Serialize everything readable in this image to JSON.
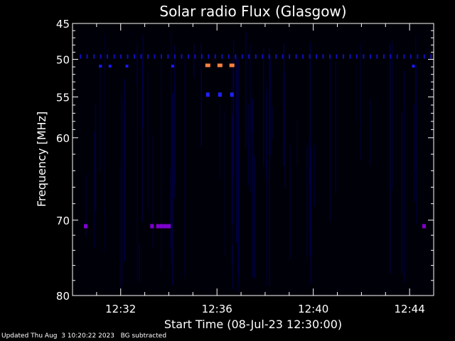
{
  "chart_data": {
    "type": "heatmap",
    "title": "Solar radio Flux (Glasgow)",
    "xlabel": "Start Time (08-Jul-23 12:30:00)",
    "ylabel": "Frequency [MHz]",
    "x_ticks": [
      "12:32",
      "12:36",
      "12:40",
      "12:44"
    ],
    "x_tick_minutes": [
      2,
      6,
      10,
      14
    ],
    "xlim_minutes": [
      0,
      15
    ],
    "y_ticks": [
      45,
      50,
      55,
      60,
      70,
      80
    ],
    "y_tick_positions": [
      0,
      0.132,
      0.27,
      0.42,
      0.723,
      1.0
    ],
    "ylim": [
      45,
      80
    ],
    "background_color": "#000000",
    "colormap": [
      "#000010",
      "#0000ff",
      "#8000c0",
      "#ff00ff",
      "#ff8040"
    ],
    "bright_spots": [
      {
        "minute": 5.62,
        "freq": 50.8,
        "level": "high"
      },
      {
        "minute": 6.12,
        "freq": 50.8,
        "level": "high"
      },
      {
        "minute": 6.62,
        "freq": 50.8,
        "level": "high"
      },
      {
        "minute": 5.62,
        "freq": 54.7,
        "level": "mid"
      },
      {
        "minute": 6.12,
        "freq": 54.7,
        "level": "mid"
      },
      {
        "minute": 6.62,
        "freq": 54.7,
        "level": "mid"
      },
      {
        "minute": 0.55,
        "freq": 70.8,
        "level": "mid"
      },
      {
        "minute": 3.3,
        "freq": 70.8,
        "level": "mid"
      },
      {
        "minute": 3.55,
        "freq": 70.8,
        "level": "mid"
      },
      {
        "minute": 3.7,
        "freq": 70.8,
        "level": "mid"
      },
      {
        "minute": 3.85,
        "freq": 70.8,
        "level": "mid"
      },
      {
        "minute": 4.0,
        "freq": 70.8,
        "level": "mid"
      },
      {
        "minute": 14.6,
        "freq": 70.8,
        "level": "mid"
      }
    ]
  },
  "footer": {
    "updated": "Updated Thu Aug  3 10:20:22 2023",
    "note": "BG subtracted"
  }
}
